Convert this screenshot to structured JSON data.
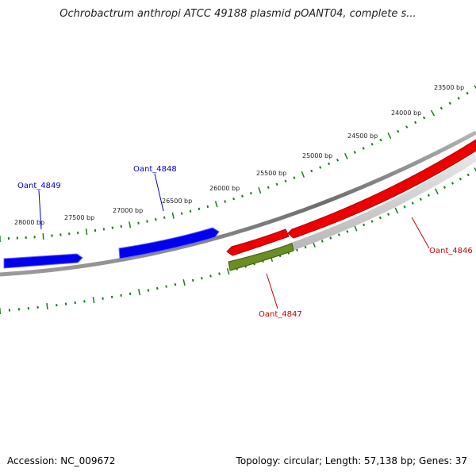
{
  "title": "Ochrobactrum anthropi ATCC 49188 plasmid pOANT04, complete s...",
  "footer": {
    "accession": "Accession: NC_009672",
    "summary": "Topology: circular; Length: 57,138 bp; Genes: 37"
  },
  "ruler": {
    "unit": "bp",
    "labels": [
      "23500 bp",
      "24000 bp",
      "24500 bp",
      "25000 bp",
      "25500 bp",
      "26000 bp",
      "26500 bp",
      "27000 bp",
      "27500 bp",
      "28000 bp"
    ],
    "tick_color": "#1a7a1a"
  },
  "genes": [
    {
      "name": "Oant_4849",
      "strand": "forward",
      "color": "#0000ee",
      "label_color": "#0000cc"
    },
    {
      "name": "Oant_4848",
      "strand": "forward",
      "color": "#0000ee",
      "label_color": "#0000cc"
    },
    {
      "name": "Oant_4847",
      "strand": "reverse",
      "color": "#6b8e23",
      "label_color": "#cc0000"
    },
    {
      "name": "Oant_4846",
      "strand": "reverse",
      "color": "#ee0000",
      "label_color": "#cc0000"
    }
  ],
  "backbone_color": "#808080"
}
